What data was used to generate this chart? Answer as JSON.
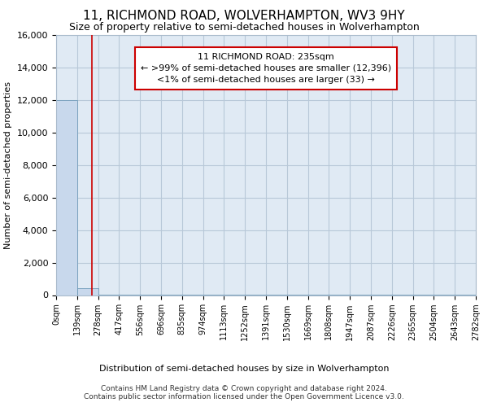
{
  "title": "11, RICHMOND ROAD, WOLVERHAMPTON, WV3 9HY",
  "subtitle": "Size of property relative to semi-detached houses in Wolverhampton",
  "xlabel_bottom": "Distribution of semi-detached houses by size in Wolverhampton",
  "ylabel": "Number of semi-detached properties",
  "footer": "Contains HM Land Registry data © Crown copyright and database right 2024.\nContains public sector information licensed under the Open Government Licence v3.0.",
  "bar_values": [
    12000,
    450,
    10,
    3,
    2,
    1,
    1,
    1,
    1,
    1,
    1,
    1,
    1,
    1,
    1,
    1,
    1,
    1,
    1,
    1
  ],
  "bin_edges": [
    0,
    139,
    278,
    417,
    556,
    696,
    835,
    974,
    1113,
    1252,
    1391,
    1530,
    1669,
    1808,
    1947,
    2087,
    2226,
    2365,
    2504,
    2643,
    2782
  ],
  "bar_color": "#c8d8ec",
  "bar_edge_color": "#6090b0",
  "bar_edge_width": 0.5,
  "ylim": [
    0,
    16000
  ],
  "yticks": [
    0,
    2000,
    4000,
    6000,
    8000,
    10000,
    12000,
    14000,
    16000
  ],
  "property_size": 235,
  "property_line_color": "#cc0000",
  "annotation_line1": "11 RICHMOND ROAD: 235sqm",
  "annotation_line2": "← >99% of semi-detached houses are smaller (12,396)",
  "annotation_line3": "<1% of semi-detached houses are larger (33) →",
  "annotation_box_color": "#cc0000",
  "annotation_text_color": "#000000",
  "grid_color": "#b8c8d8",
  "background_color": "#e0eaf4",
  "title_fontsize": 11,
  "subtitle_fontsize": 9,
  "annotation_fontsize": 8,
  "ylabel_fontsize": 8,
  "xlabel_fontsize": 8,
  "footer_fontsize": 6.5,
  "ytick_fontsize": 8,
  "xtick_fontsize": 7
}
